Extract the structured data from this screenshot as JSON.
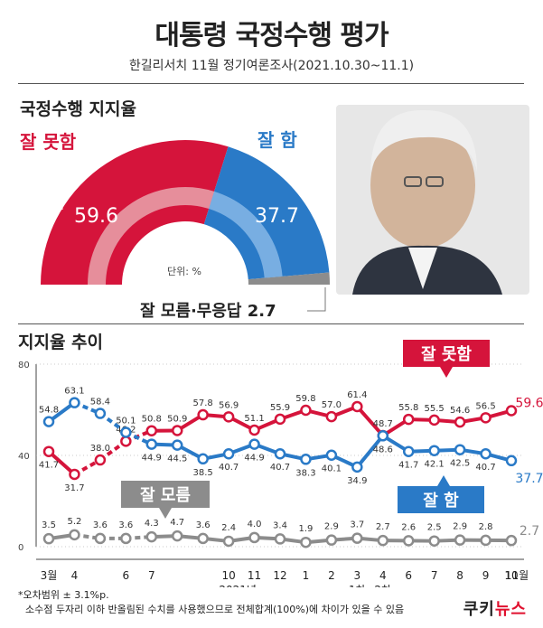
{
  "title": "대통령 국정수행 평가",
  "subtitle": "한길리서치 11월 정기여론조사(2021.10.30~11.1)",
  "section_approval": "국정수행 지지율",
  "section_trend": "지지율 추이",
  "colors": {
    "disapprove": "#d5143b",
    "approve": "#2a7ac7",
    "unknown": "#8c8c8c",
    "disapprove_light": "#e9a3ad",
    "approve_light": "#86b7e6"
  },
  "gauge": {
    "disapprove_label": "잘 못함",
    "approve_label": "잘 함",
    "unknown_label": "잘 모름·무응답 2.7",
    "disapprove_value": "59.6",
    "approve_value": "37.7",
    "unit_label": "단위: %"
  },
  "trend_labels": {
    "disapprove": "잘 못함",
    "approve": "잘 함",
    "unknown": "잘 모름"
  },
  "footer": {
    "note1": "*오차범위 ± 3.1%p.",
    "note2": "소수점 두자리 이하 반올림된 수치를 사용했으므로 전체합계(100%)에 차이가 있을 수 있음"
  },
  "logo": {
    "part1": "쿠키",
    "part2": "뉴스"
  },
  "chart_data": [
    {
      "type": "pie",
      "categories": [
        "잘 못함",
        "잘 함",
        "잘 모름·무응답"
      ],
      "values": [
        59.6,
        37.7,
        2.7
      ]
    },
    {
      "type": "line",
      "ylim": [
        0,
        80
      ],
      "y_ticks": [
        "0",
        "40",
        "80"
      ],
      "x_ticks": [
        "3월",
        "4",
        "6",
        "7",
        "10",
        "11",
        "12",
        "1",
        "2",
        "3",
        "4",
        "6",
        "7",
        "8",
        "9",
        "10",
        "11월"
      ],
      "x_sub_labels": [
        {
          "text": "2021년",
          "under": 7
        },
        {
          "text": "1차",
          "under": 12
        },
        {
          "text": "2차",
          "under": 13
        }
      ],
      "dashed_segments_between": [
        [
          1,
          2
        ],
        [
          2,
          3
        ],
        [
          3,
          4
        ]
      ],
      "series": [
        {
          "name": "잘 못함",
          "values": [
            41.7,
            31.7,
            38.0,
            46.2,
            50.8,
            50.9,
            57.8,
            56.9,
            51.1,
            55.9,
            59.8,
            57.0,
            61.4,
            48.7,
            55.8,
            55.5,
            54.6,
            56.5,
            59.6
          ],
          "labels": [
            "41.7",
            "31.7",
            "38.0",
            "46.2",
            "50.8",
            "50.9",
            "57.8",
            "56.9",
            "51.1",
            "55.9",
            "59.8",
            "57.0",
            "61.4",
            "48.7",
            "55.8",
            "55.5",
            "54.6",
            "56.5",
            "59.6"
          ]
        },
        {
          "name": "잘 함",
          "values": [
            54.8,
            63.1,
            58.4,
            50.1,
            44.9,
            44.5,
            38.5,
            40.7,
            44.9,
            40.7,
            38.3,
            40.1,
            34.9,
            48.6,
            41.7,
            42.1,
            42.5,
            40.7,
            37.7
          ],
          "labels": [
            "54.8",
            "63.1",
            "58.4",
            "50.1",
            "44.9",
            "44.5",
            "38.5",
            "40.7",
            "44.9",
            "40.7",
            "38.3",
            "40.1",
            "34.9",
            "48.6",
            "41.7",
            "42.1",
            "42.5",
            "40.7",
            "37.7"
          ]
        },
        {
          "name": "잘 모름",
          "values": [
            3.5,
            5.2,
            3.6,
            3.6,
            4.3,
            4.7,
            3.6,
            2.4,
            4.0,
            3.4,
            1.9,
            2.9,
            3.7,
            2.7,
            2.6,
            2.5,
            2.9,
            2.8,
            2.7
          ],
          "labels": [
            "3.5",
            "5.2",
            "3.6",
            "3.6",
            "4.3",
            "4.7",
            "3.6",
            "2.4",
            "4.0",
            "3.4",
            "1.9",
            "2.9",
            "3.7",
            "2.7",
            "2.6",
            "2.5",
            "2.9",
            "2.8",
            "2.7"
          ]
        }
      ]
    }
  ]
}
